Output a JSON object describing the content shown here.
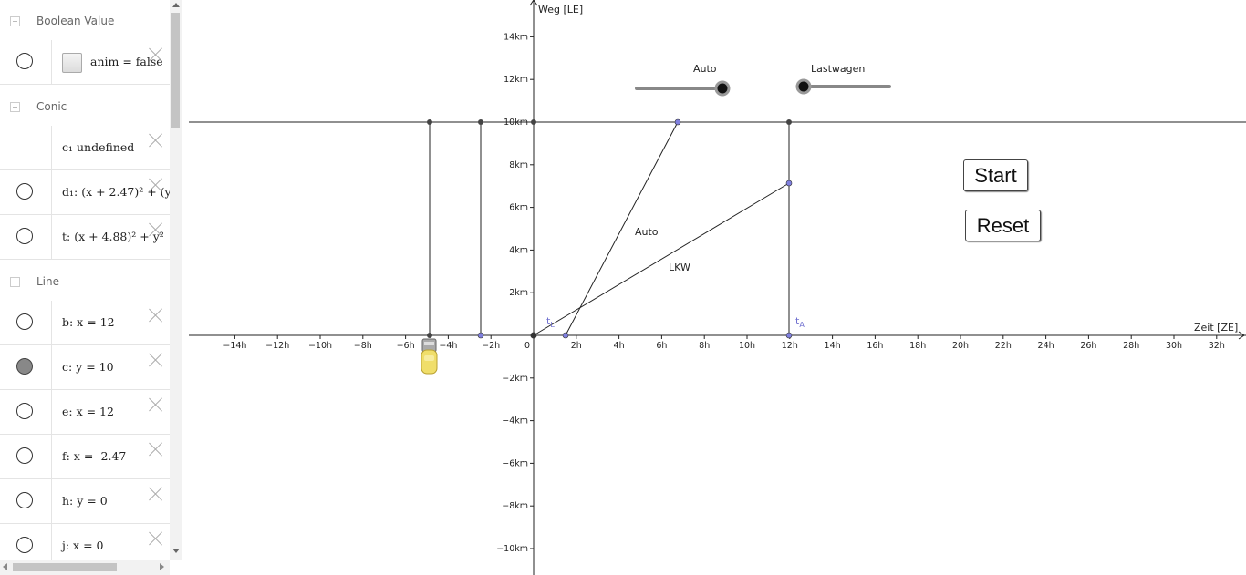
{
  "algebra": {
    "groups": [
      {
        "title": "Boolean Value"
      },
      {
        "title": "Conic"
      },
      {
        "title": "Line"
      }
    ],
    "rows": [
      {
        "expr": "anim = false",
        "marble": "off"
      },
      {
        "expr": "c₁ undefined",
        "marble": "none"
      },
      {
        "expr": "d₁: (x + 2.47)² + (y",
        "marble": "off"
      },
      {
        "expr": "t: (x + 4.88)² + y²",
        "marble": "off"
      },
      {
        "expr": "b: x = 12",
        "marble": "off"
      },
      {
        "expr": "c: y = 10",
        "marble": "on"
      },
      {
        "expr": "e: x = 12",
        "marble": "off"
      },
      {
        "expr": "f: x = -2.47",
        "marble": "off"
      },
      {
        "expr": "h: y = 0",
        "marble": "off"
      },
      {
        "expr": "j: x = 0",
        "marble": "off"
      }
    ]
  },
  "graph": {
    "y_axis_label": "Weg [LE]",
    "x_axis_label": "Zeit [ZE]",
    "x_ticks": [
      "−14h",
      "−12h",
      "−10h",
      "−8h",
      "−6h",
      "−4h",
      "−2h",
      "0",
      "2h",
      "4h",
      "6h",
      "8h",
      "10h",
      "12h",
      "14h",
      "16h",
      "18h",
      "20h",
      "22h",
      "24h",
      "26h",
      "28h",
      "30h",
      "32h"
    ],
    "y_ticks": [
      "14km",
      "12km",
      "10km",
      "8km",
      "6km",
      "4km",
      "2km",
      "−2km",
      "−4km",
      "−6km",
      "−8km",
      "−10km"
    ],
    "slider_auto_label": "Auto",
    "slider_lkw_label": "Lastwagen",
    "line_label_auto": "Auto",
    "line_label_lkw": "LKW",
    "point_label_tl": "t",
    "point_label_tl_sub": "L",
    "point_label_ta": "t",
    "point_label_ta_sub": "A",
    "start_button": "Start",
    "reset_button": "Reset"
  },
  "colors": {
    "axis": "#222222",
    "point_dark": "#333333",
    "point_blue": "#7f7fdf",
    "slider_track": "#888888"
  }
}
